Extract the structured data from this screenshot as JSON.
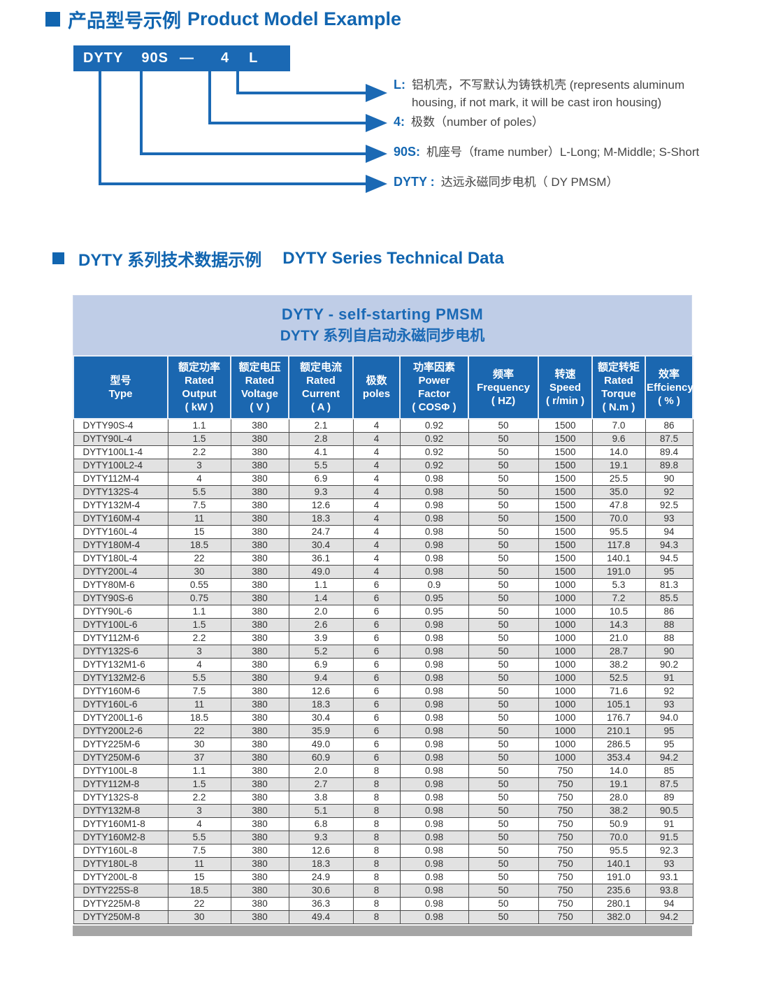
{
  "colors": {
    "accent_blue": "#1165b0",
    "box_blue": "#1b69b4",
    "table_header_blue": "#1b67b0",
    "banner_bg": "#bfcde7",
    "row_alt_gray": "#e2e2e2",
    "footer_bar_gray": "#a5a5a5"
  },
  "section1": {
    "title_zh": "产品型号示例",
    "title_en": "Product Model Example",
    "model_box": {
      "segments": [
        "DYTY",
        "90S",
        "—",
        "4",
        "L"
      ]
    },
    "annotations": [
      {
        "label": "L:",
        "text": "铝机壳，不写默认为铸铁机壳 (represents aluminum housing, if not mark, it will be cast iron housing)"
      },
      {
        "label": "4:",
        "text": "极数（number of poles）"
      },
      {
        "label": "90S:",
        "text": "机座号（frame number）L-Long; M-Middle; S-Short"
      },
      {
        "label": "DYTY :",
        "text": "达远永磁同步电机（ DY  PMSM）"
      }
    ]
  },
  "section2": {
    "title_zh": "DYTY 系列技术数据示例",
    "title_en": "DYTY Series Technical Data"
  },
  "table": {
    "banner": {
      "line1": "DYTY - self-starting PMSM",
      "line2": "DYTY 系列自启动永磁同步电机"
    },
    "columns": [
      {
        "zh": "型号",
        "en": "Type"
      },
      {
        "zh": "额定功率",
        "en": "Rated Output",
        "unit": "( kW )"
      },
      {
        "zh": "额定电压",
        "en": "Rated Voltage",
        "unit": "( V )"
      },
      {
        "zh": "额定电流",
        "en": "Rated Current",
        "unit": "( A )"
      },
      {
        "zh": "极数",
        "en": "poles"
      },
      {
        "zh": "功率因素",
        "en": "Power Factor",
        "unit": "( COSΦ )"
      },
      {
        "zh": "频率",
        "en": "Frequency",
        "unit": "( HZ)"
      },
      {
        "zh": "转速",
        "en": "Speed",
        "unit": "( r/min )"
      },
      {
        "zh": "额定转矩",
        "en": "Rated Torque",
        "unit": "( N.m )"
      },
      {
        "zh": "效率",
        "en": "Effciency",
        "unit": "( % )"
      }
    ],
    "rows": [
      [
        "DYTY90S-4",
        "1.1",
        "380",
        "2.1",
        "4",
        "0.92",
        "50",
        "1500",
        "7.0",
        "86"
      ],
      [
        "DYTY90L-4",
        "1.5",
        "380",
        "2.8",
        "4",
        "0.92",
        "50",
        "1500",
        "9.6",
        "87.5"
      ],
      [
        "DYTY100L1-4",
        "2.2",
        "380",
        "4.1",
        "4",
        "0.92",
        "50",
        "1500",
        "14.0",
        "89.4"
      ],
      [
        "DYTY100L2-4",
        "3",
        "380",
        "5.5",
        "4",
        "0.92",
        "50",
        "1500",
        "19.1",
        "89.8"
      ],
      [
        "DYTY112M-4",
        "4",
        "380",
        "6.9",
        "4",
        "0.98",
        "50",
        "1500",
        "25.5",
        "90"
      ],
      [
        "DYTY132S-4",
        "5.5",
        "380",
        "9.3",
        "4",
        "0.98",
        "50",
        "1500",
        "35.0",
        "92"
      ],
      [
        "DYTY132M-4",
        "7.5",
        "380",
        "12.6",
        "4",
        "0.98",
        "50",
        "1500",
        "47.8",
        "92.5"
      ],
      [
        "DYTY160M-4",
        "11",
        "380",
        "18.3",
        "4",
        "0.98",
        "50",
        "1500",
        "70.0",
        "93"
      ],
      [
        "DYTY160L-4",
        "15",
        "380",
        "24.7",
        "4",
        "0.98",
        "50",
        "1500",
        "95.5",
        "94"
      ],
      [
        "DYTY180M-4",
        "18.5",
        "380",
        "30.4",
        "4",
        "0.98",
        "50",
        "1500",
        "117.8",
        "94.3"
      ],
      [
        "DYTY180L-4",
        "22",
        "380",
        "36.1",
        "4",
        "0.98",
        "50",
        "1500",
        "140.1",
        "94.5"
      ],
      [
        "DYTY200L-4",
        "30",
        "380",
        "49.0",
        "4",
        "0.98",
        "50",
        "1500",
        "191.0",
        "95"
      ],
      [
        "DYTY80M-6",
        "0.55",
        "380",
        "1.1",
        "6",
        "0.9",
        "50",
        "1000",
        "5.3",
        "81.3"
      ],
      [
        "DYTY90S-6",
        "0.75",
        "380",
        "1.4",
        "6",
        "0.95",
        "50",
        "1000",
        "7.2",
        "85.5"
      ],
      [
        "DYTY90L-6",
        "1.1",
        "380",
        "2.0",
        "6",
        "0.95",
        "50",
        "1000",
        "10.5",
        "86"
      ],
      [
        "DYTY100L-6",
        "1.5",
        "380",
        "2.6",
        "6",
        "0.98",
        "50",
        "1000",
        "14.3",
        "88"
      ],
      [
        "DYTY112M-6",
        "2.2",
        "380",
        "3.9",
        "6",
        "0.98",
        "50",
        "1000",
        "21.0",
        "88"
      ],
      [
        "DYTY132S-6",
        "3",
        "380",
        "5.2",
        "6",
        "0.98",
        "50",
        "1000",
        "28.7",
        "90"
      ],
      [
        "DYTY132M1-6",
        "4",
        "380",
        "6.9",
        "6",
        "0.98",
        "50",
        "1000",
        "38.2",
        "90.2"
      ],
      [
        "DYTY132M2-6",
        "5.5",
        "380",
        "9.4",
        "6",
        "0.98",
        "50",
        "1000",
        "52.5",
        "91"
      ],
      [
        "DYTY160M-6",
        "7.5",
        "380",
        "12.6",
        "6",
        "0.98",
        "50",
        "1000",
        "71.6",
        "92"
      ],
      [
        "DYTY160L-6",
        "11",
        "380",
        "18.3",
        "6",
        "0.98",
        "50",
        "1000",
        "105.1",
        "93"
      ],
      [
        "DYTY200L1-6",
        "18.5",
        "380",
        "30.4",
        "6",
        "0.98",
        "50",
        "1000",
        "176.7",
        "94.0"
      ],
      [
        "DYTY200L2-6",
        "22",
        "380",
        "35.9",
        "6",
        "0.98",
        "50",
        "1000",
        "210.1",
        "95"
      ],
      [
        "DYTY225M-6",
        "30",
        "380",
        "49.0",
        "6",
        "0.98",
        "50",
        "1000",
        "286.5",
        "95"
      ],
      [
        "DYTY250M-6",
        "37",
        "380",
        "60.9",
        "6",
        "0.98",
        "50",
        "1000",
        "353.4",
        "94.2"
      ],
      [
        "DYTY100L-8",
        "1.1",
        "380",
        "2.0",
        "8",
        "0.98",
        "50",
        "750",
        "14.0",
        "85"
      ],
      [
        "DYTY112M-8",
        "1.5",
        "380",
        "2.7",
        "8",
        "0.98",
        "50",
        "750",
        "19.1",
        "87.5"
      ],
      [
        "DYTY132S-8",
        "2.2",
        "380",
        "3.8",
        "8",
        "0.98",
        "50",
        "750",
        "28.0",
        "89"
      ],
      [
        "DYTY132M-8",
        "3",
        "380",
        "5.1",
        "8",
        "0.98",
        "50",
        "750",
        "38.2",
        "90.5"
      ],
      [
        "DYTY160M1-8",
        "4",
        "380",
        "6.8",
        "8",
        "0.98",
        "50",
        "750",
        "50.9",
        "91"
      ],
      [
        "DYTY160M2-8",
        "5.5",
        "380",
        "9.3",
        "8",
        "0.98",
        "50",
        "750",
        "70.0",
        "91.5"
      ],
      [
        "DYTY160L-8",
        "7.5",
        "380",
        "12.6",
        "8",
        "0.98",
        "50",
        "750",
        "95.5",
        "92.3"
      ],
      [
        "DYTY180L-8",
        "11",
        "380",
        "18.3",
        "8",
        "0.98",
        "50",
        "750",
        "140.1",
        "93"
      ],
      [
        "DYTY200L-8",
        "15",
        "380",
        "24.9",
        "8",
        "0.98",
        "50",
        "750",
        "191.0",
        "93.1"
      ],
      [
        "DYTY225S-8",
        "18.5",
        "380",
        "30.6",
        "8",
        "0.98",
        "50",
        "750",
        "235.6",
        "93.8"
      ],
      [
        "DYTY225M-8",
        "22",
        "380",
        "36.3",
        "8",
        "0.98",
        "50",
        "750",
        "280.1",
        "94"
      ],
      [
        "DYTY250M-8",
        "30",
        "380",
        "49.4",
        "8",
        "0.98",
        "50",
        "750",
        "382.0",
        "94.2"
      ]
    ]
  }
}
